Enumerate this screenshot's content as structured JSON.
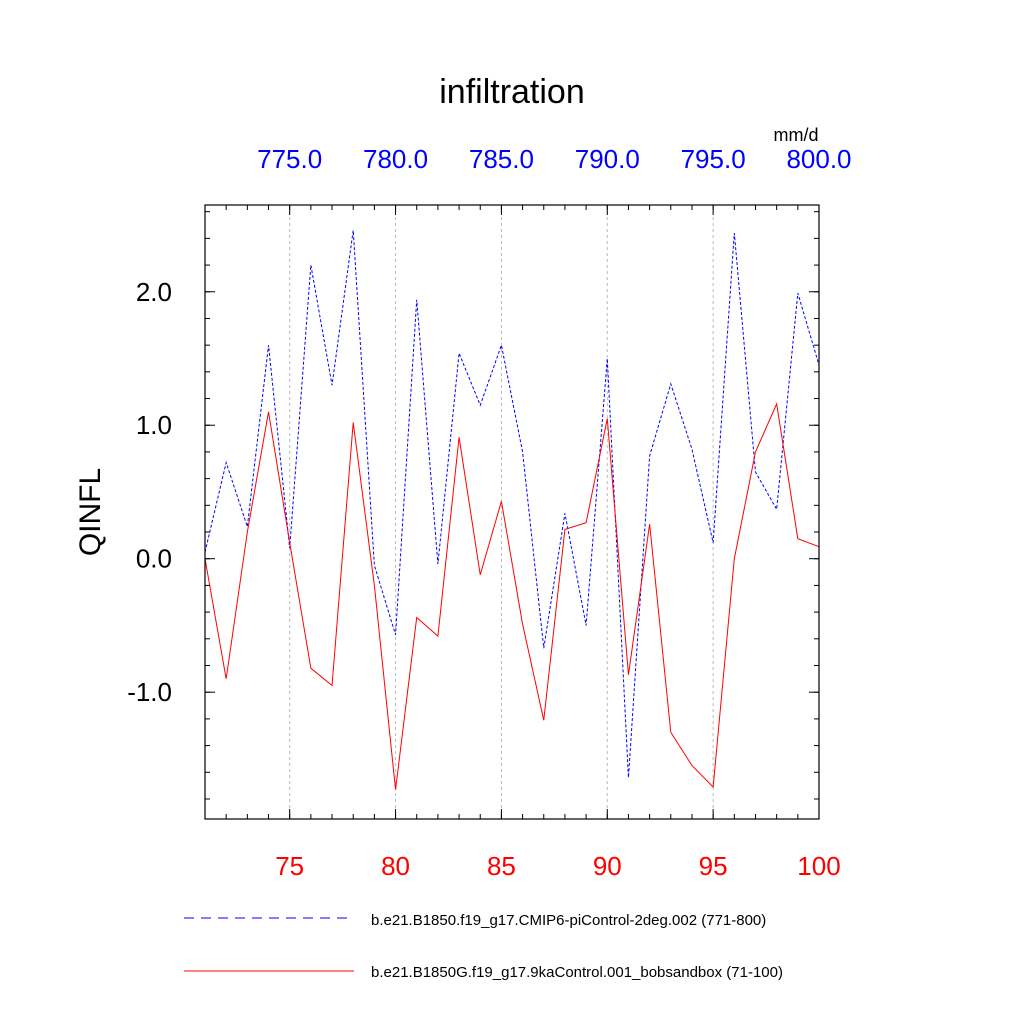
{
  "chart_data": {
    "type": "line",
    "title": "infiltration",
    "ylabel": "QINFL",
    "units": "mm/d",
    "ylim": [
      -1.95,
      2.65
    ],
    "y_ticks": [
      -1.0,
      0.0,
      1.0,
      2.0
    ],
    "y_tick_labels": [
      "-1.0",
      "0.0",
      "1.0",
      "2.0"
    ],
    "bottom_axis": {
      "range": [
        71,
        100
      ],
      "ticks": [
        75,
        80,
        85,
        90,
        95,
        100
      ],
      "tick_labels": [
        "75",
        "80",
        "85",
        "90",
        "95",
        "100"
      ],
      "color": "#ff0000"
    },
    "top_axis": {
      "range": [
        771,
        800
      ],
      "ticks": [
        775,
        780,
        785,
        790,
        795,
        800
      ],
      "tick_labels": [
        "775.0",
        "780.0",
        "785.0",
        "790.0",
        "795.0",
        "800.0"
      ],
      "color": "#0000ff"
    },
    "grid": "vertical dashed at major ticks",
    "legend_position": "bottom",
    "series": [
      {
        "name": "b.e21.B1850.f19_g17.CMIP6-piControl-2deg.002 (771-800)",
        "color": "#0000ff",
        "style": "dashed",
        "axis": "top",
        "x": [
          771,
          772,
          773,
          774,
          775,
          776,
          777,
          778,
          779,
          780,
          781,
          782,
          783,
          784,
          785,
          786,
          787,
          788,
          789,
          790,
          791,
          792,
          793,
          794,
          795,
          796,
          797,
          798,
          799,
          800
        ],
        "values": [
          0.05,
          0.72,
          0.24,
          1.6,
          0.08,
          2.2,
          1.3,
          2.46,
          -0.05,
          -0.57,
          1.94,
          -0.04,
          1.54,
          1.15,
          1.6,
          0.8,
          -0.67,
          0.34,
          -0.5,
          1.5,
          -1.64,
          0.77,
          1.31,
          0.82,
          0.12,
          2.44,
          0.65,
          0.37,
          1.99,
          1.45
        ]
      },
      {
        "name": "b.e21.B1850G.f19_g17.9kaControl.001_bobsandbox (71-100)",
        "color": "#ff0000",
        "style": "solid",
        "axis": "bottom",
        "x": [
          71,
          72,
          73,
          74,
          75,
          76,
          77,
          78,
          79,
          80,
          81,
          82,
          83,
          84,
          85,
          86,
          87,
          88,
          89,
          90,
          91,
          92,
          93,
          94,
          95,
          96,
          97,
          98,
          99,
          100
        ],
        "values": [
          0.0,
          -0.9,
          0.2,
          1.1,
          0.12,
          -0.82,
          -0.95,
          1.02,
          -0.2,
          -1.73,
          -0.44,
          -0.58,
          0.91,
          -0.12,
          0.43,
          -0.49,
          -1.21,
          0.22,
          0.27,
          1.05,
          -0.87,
          0.26,
          -1.3,
          -1.55,
          -1.71,
          0.0,
          0.8,
          1.16,
          0.15,
          0.09
        ]
      }
    ]
  }
}
